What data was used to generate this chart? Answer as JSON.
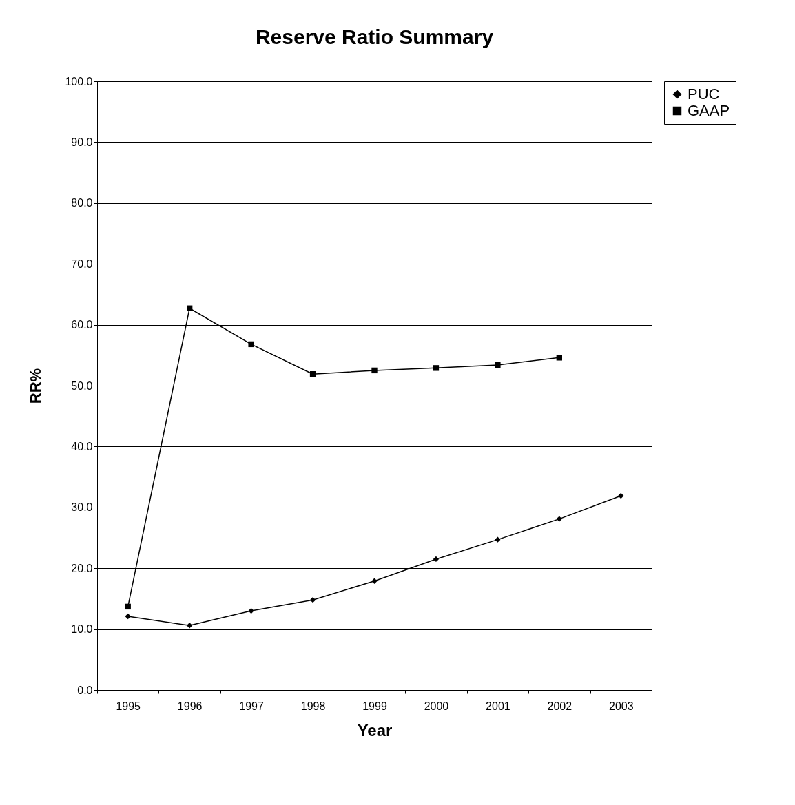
{
  "chart_data": {
    "type": "line",
    "title": "Reserve Ratio Summary",
    "xlabel": "Year",
    "ylabel": "RR%",
    "categories": [
      "1995",
      "1996",
      "1997",
      "1998",
      "1999",
      "2000",
      "2001",
      "2002",
      "2003"
    ],
    "series": [
      {
        "name": "PUC",
        "color": "#000000",
        "marker": "diamond",
        "values": [
          12.1,
          10.6,
          13.0,
          14.8,
          17.9,
          21.5,
          24.7,
          28.1,
          31.9
        ]
      },
      {
        "name": "GAAP",
        "color": "#000000",
        "marker": "square",
        "values": [
          13.7,
          62.7,
          56.8,
          51.9,
          52.5,
          52.9,
          53.4,
          54.6,
          null
        ]
      }
    ],
    "ylim": [
      0,
      100
    ],
    "yticks": [
      {
        "value": 0,
        "label": "0.0"
      },
      {
        "value": 10,
        "label": "10.0"
      },
      {
        "value": 20,
        "label": "20.0"
      },
      {
        "value": 30,
        "label": "30.0"
      },
      {
        "value": 40,
        "label": "40.0"
      },
      {
        "value": 50,
        "label": "50.0"
      },
      {
        "value": 60,
        "label": "60.0"
      },
      {
        "value": 70,
        "label": "70.0"
      },
      {
        "value": 80,
        "label": "80.0"
      },
      {
        "value": 90,
        "label": "90.0"
      },
      {
        "value": 100,
        "label": "100.0"
      }
    ],
    "grid": "y",
    "legend": "right",
    "line_style": "solid"
  }
}
